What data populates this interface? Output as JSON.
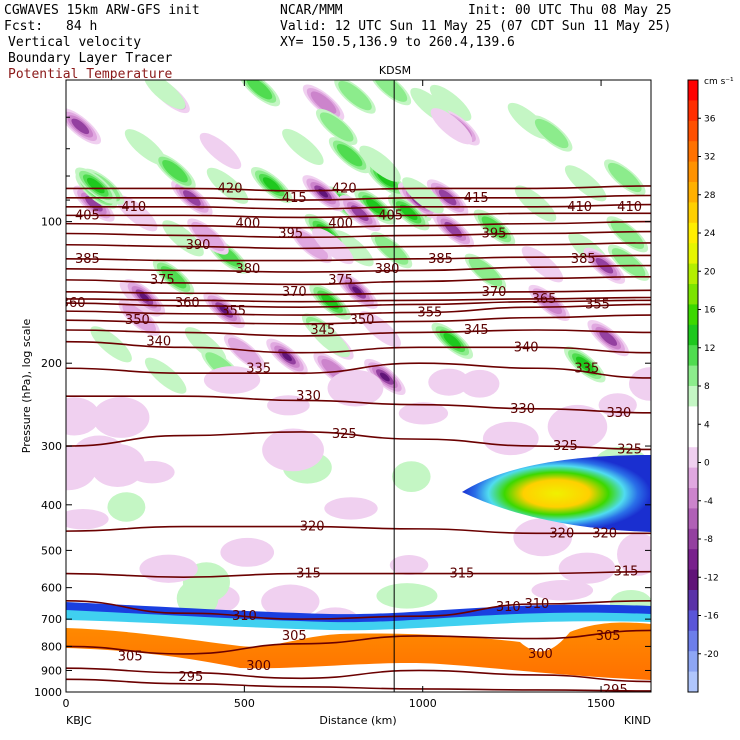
{
  "header": {
    "model": "CGWAVES 15km ARW-GFS init",
    "org": "NCAR/MMM",
    "init": "Init: 00 UTC Thu 08 May 25",
    "fcst_label": "Fcst:",
    "fcst_value": "84 h",
    "valid": "Valid: 12 UTC Sun 11 May 25 (07 CDT Sun 11 May 25)",
    "field1": "Vertical velocity",
    "xy": "XY= 150.5,136.9 to 260.4,139.6",
    "field2": "Boundary Layer Tracer",
    "field3": "Potential Temperature",
    "field3_color": "#8b1a1a"
  },
  "chart_data": {
    "type": "heatmap",
    "title": "",
    "xlabel": "Distance (km)",
    "ylabel": "Pressure (hPa), log scale",
    "xlim": [
      0,
      1640
    ],
    "ylim_hpa": [
      1000,
      50
    ],
    "y_scale": "log",
    "x_ticks": [
      0,
      500,
      1000,
      1500
    ],
    "y_ticks": [
      100,
      200,
      300,
      400,
      500,
      600,
      700,
      800,
      900,
      1000
    ],
    "x_endpoints": {
      "left": "KBJC",
      "right": "KIND"
    },
    "station_marker": {
      "label": "KDSM",
      "x_km": 920
    },
    "colorbar": {
      "units": "cm s⁻¹",
      "ticks": [
        36,
        32,
        28,
        24,
        20,
        16,
        12,
        8,
        4,
        0,
        -4,
        -8,
        -12,
        -16,
        -20
      ],
      "colors": [
        "#ff0000",
        "#ff2e00",
        "#ff5000",
        "#ff7200",
        "#ff9200",
        "#ffb000",
        "#ffd000",
        "#ffee00",
        "#e6f500",
        "#b4ee00",
        "#7ce400",
        "#3cd800",
        "#1ec81e",
        "#50dc50",
        "#8cec8c",
        "#c4f6c4",
        "#ffffff",
        "#ffffff",
        "#f0d0f0",
        "#e0a8e0",
        "#cc84cc",
        "#b060b6",
        "#9440a0",
        "#78208c",
        "#601478",
        "#5a32a8",
        "#5a55d8",
        "#6d7eea",
        "#8ea6f4",
        "#b0c6fc"
      ]
    },
    "theta_contours": [
      {
        "value": 295,
        "p": [
          940,
          960,
          975,
          985,
          990,
          995
        ]
      },
      {
        "value": 300,
        "p": [
          890,
          910,
          935,
          900,
          920,
          950
        ]
      },
      {
        "value": 305,
        "p": [
          800,
          830,
          790,
          760,
          770,
          740
        ]
      },
      {
        "value": 310,
        "p": [
          640,
          680,
          700,
          690,
          650,
          640
        ]
      },
      {
        "value": 315,
        "p": [
          560,
          570,
          560,
          560,
          560,
          555
        ]
      },
      {
        "value": 320,
        "p": [
          455,
          445,
          445,
          450,
          460,
          460
        ]
      },
      {
        "value": 325,
        "p": [
          300,
          285,
          280,
          290,
          300,
          305
        ]
      },
      {
        "value": 330,
        "p": [
          235,
          235,
          240,
          245,
          250,
          255
        ]
      },
      {
        "value": 335,
        "p": [
          205,
          210,
          210,
          200,
          205,
          215
        ]
      },
      {
        "value": 340,
        "p": [
          180,
          185,
          190,
          185,
          185,
          190
        ]
      },
      {
        "value": 345,
        "p": [
          170,
          172,
          175,
          172,
          170,
          172
        ]
      },
      {
        "value": 350,
        "p": [
          162,
          164,
          165,
          163,
          160,
          158
        ]
      },
      {
        "value": 355,
        "p": [
          155,
          157,
          158,
          156,
          152,
          150
        ]
      },
      {
        "value": 360,
        "p": [
          149,
          151,
          152,
          150,
          148,
          147
        ]
      },
      {
        "value": 365,
        "p": [
          146,
          147,
          148,
          147,
          146,
          145
        ]
      },
      {
        "value": 370,
        "p": [
          141,
          142,
          143,
          142,
          141,
          140
        ]
      },
      {
        "value": 375,
        "p": [
          133,
          135,
          136,
          134,
          132,
          131
        ]
      },
      {
        "value": 380,
        "p": [
          126,
          127,
          128,
          127,
          125,
          124
        ]
      },
      {
        "value": 385,
        "p": [
          120,
          121,
          121,
          120,
          119,
          118
        ]
      },
      {
        "value": 390,
        "p": [
          112,
          113,
          114,
          113,
          112,
          111
        ]
      },
      {
        "value": 395,
        "p": [
          106,
          107,
          108,
          107,
          106,
          105
        ]
      },
      {
        "value": 400,
        "p": [
          101,
          102,
          103,
          102,
          101,
          100
        ]
      },
      {
        "value": 405,
        "p": [
          97,
          97,
          98,
          97,
          96,
          96
        ]
      },
      {
        "value": 410,
        "p": [
          93,
          93,
          94,
          93,
          93,
          92
        ]
      },
      {
        "value": 415,
        "p": [
          89,
          89,
          90,
          89,
          89,
          88
        ]
      },
      {
        "value": 420,
        "p": [
          85,
          85,
          86,
          85,
          85,
          84
        ]
      }
    ],
    "contour_x_km": [
      0,
      330,
      660,
      990,
      1320,
      1640
    ],
    "theta_labels": [
      {
        "text": "405",
        "x_km": 60,
        "p": 97
      },
      {
        "text": "410",
        "x_km": 190,
        "p": 93
      },
      {
        "text": "420",
        "x_km": 460,
        "p": 85
      },
      {
        "text": "415",
        "x_km": 640,
        "p": 89
      },
      {
        "text": "420",
        "x_km": 780,
        "p": 85
      },
      {
        "text": "405",
        "x_km": 910,
        "p": 97
      },
      {
        "text": "415",
        "x_km": 1150,
        "p": 89
      },
      {
        "text": "410",
        "x_km": 1440,
        "p": 93
      },
      {
        "text": "410",
        "x_km": 1580,
        "p": 93
      },
      {
        "text": "385",
        "x_km": 60,
        "p": 120
      },
      {
        "text": "390",
        "x_km": 370,
        "p": 112
      },
      {
        "text": "400",
        "x_km": 510,
        "p": 101
      },
      {
        "text": "395",
        "x_km": 630,
        "p": 106
      },
      {
        "text": "400",
        "x_km": 770,
        "p": 101
      },
      {
        "text": "385",
        "x_km": 1050,
        "p": 120
      },
      {
        "text": "395",
        "x_km": 1200,
        "p": 106
      },
      {
        "text": "385",
        "x_km": 1450,
        "p": 120
      },
      {
        "text": "375",
        "x_km": 270,
        "p": 133
      },
      {
        "text": "380",
        "x_km": 510,
        "p": 126
      },
      {
        "text": "370",
        "x_km": 640,
        "p": 141
      },
      {
        "text": "375",
        "x_km": 770,
        "p": 133
      },
      {
        "text": "380",
        "x_km": 900,
        "p": 126
      },
      {
        "text": "370",
        "x_km": 1200,
        "p": 141
      },
      {
        "text": "365",
        "x_km": 1340,
        "p": 146
      },
      {
        "text": "355",
        "x_km": 1490,
        "p": 150
      },
      {
        "text": "360",
        "x_km": 20,
        "p": 149
      },
      {
        "text": "350",
        "x_km": 200,
        "p": 162
      },
      {
        "text": "360",
        "x_km": 340,
        "p": 149
      },
      {
        "text": "355",
        "x_km": 470,
        "p": 155
      },
      {
        "text": "345",
        "x_km": 720,
        "p": 170
      },
      {
        "text": "350",
        "x_km": 830,
        "p": 162
      },
      {
        "text": "355",
        "x_km": 1020,
        "p": 156
      },
      {
        "text": "345",
        "x_km": 1150,
        "p": 170
      },
      {
        "text": "340",
        "x_km": 260,
        "p": 180
      },
      {
        "text": "335",
        "x_km": 540,
        "p": 205
      },
      {
        "text": "340",
        "x_km": 1290,
        "p": 185
      },
      {
        "text": "335",
        "x_km": 1460,
        "p": 205
      },
      {
        "text": "330",
        "x_km": 680,
        "p": 235
      },
      {
        "text": "330",
        "x_km": 1280,
        "p": 250
      },
      {
        "text": "330",
        "x_km": 1550,
        "p": 255
      },
      {
        "text": "325",
        "x_km": 780,
        "p": 283
      },
      {
        "text": "325",
        "x_km": 1400,
        "p": 300
      },
      {
        "text": "325",
        "x_km": 1580,
        "p": 305
      },
      {
        "text": "320",
        "x_km": 690,
        "p": 445
      },
      {
        "text": "320",
        "x_km": 1390,
        "p": 460
      },
      {
        "text": "320",
        "x_km": 1510,
        "p": 460
      },
      {
        "text": "315",
        "x_km": 680,
        "p": 560
      },
      {
        "text": "315",
        "x_km": 1110,
        "p": 560
      },
      {
        "text": "315",
        "x_km": 1570,
        "p": 555
      },
      {
        "text": "310",
        "x_km": 500,
        "p": 690
      },
      {
        "text": "310",
        "x_km": 1240,
        "p": 660
      },
      {
        "text": "310",
        "x_km": 1320,
        "p": 650
      },
      {
        "text": "305",
        "x_km": 180,
        "p": 840
      },
      {
        "text": "305",
        "x_km": 640,
        "p": 760
      },
      {
        "text": "305",
        "x_km": 1520,
        "p": 760
      },
      {
        "text": "300",
        "x_km": 540,
        "p": 880
      },
      {
        "text": "300",
        "x_km": 1330,
        "p": 830
      },
      {
        "text": "295",
        "x_km": 350,
        "p": 930
      },
      {
        "text": "295",
        "x_km": 1540,
        "p": 990
      }
    ]
  }
}
